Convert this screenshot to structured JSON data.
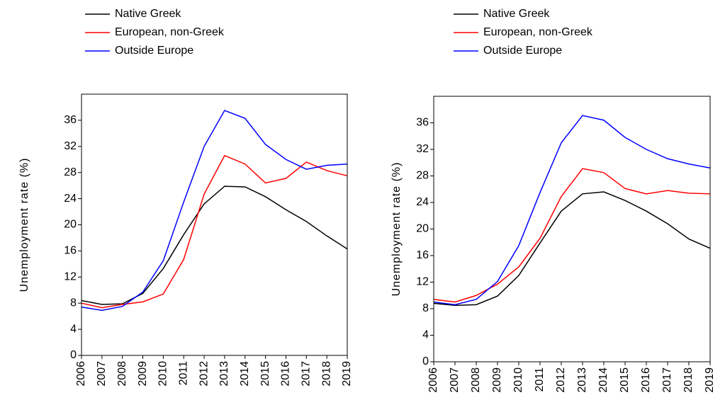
{
  "chart_data": [
    {
      "type": "line",
      "y_label": "Unemployment rate (%)",
      "categories": [
        "2006",
        "2007",
        "2008",
        "2009",
        "2010",
        "2011",
        "2012",
        "2013",
        "2014",
        "2015",
        "2016",
        "2017",
        "2018",
        "2019"
      ],
      "series": [
        {
          "name": "Native Greek",
          "color": "#000000",
          "values": [
            8.4,
            7.8,
            7.9,
            9.5,
            13.3,
            18.5,
            23.2,
            25.9,
            25.8,
            24.3,
            22.3,
            20.5,
            18.3,
            16.3
          ]
        },
        {
          "name": "European, non-Greek",
          "color": "#ff0000",
          "values": [
            8.0,
            7.3,
            7.8,
            8.2,
            9.4,
            14.7,
            24.7,
            30.6,
            29.3,
            26.4,
            27.1,
            29.6,
            28.3,
            27.5
          ]
        },
        {
          "name": "Outside Europe",
          "color": "#0000ff",
          "values": [
            7.4,
            6.9,
            7.5,
            9.7,
            14.5,
            23.5,
            32.0,
            37.5,
            36.3,
            32.3,
            30.0,
            28.5,
            29.1,
            29.3
          ]
        }
      ],
      "ylim": [
        0,
        40
      ],
      "yticks": [
        0,
        4,
        8,
        12,
        16,
        20,
        24,
        28,
        32,
        36
      ]
    },
    {
      "type": "line",
      "y_label": "Unemployment rate (%)",
      "categories": [
        "2006",
        "2007",
        "2008",
        "2009",
        "2010",
        "2011",
        "2012",
        "2013",
        "2014",
        "2015",
        "2016",
        "2017",
        "2018",
        "2019"
      ],
      "series": [
        {
          "name": "Native Greek",
          "color": "#000000",
          "values": [
            8.8,
            8.5,
            8.6,
            9.9,
            13.0,
            17.9,
            22.7,
            25.3,
            25.6,
            24.3,
            22.7,
            20.8,
            18.5,
            17.1
          ]
        },
        {
          "name": "European, non-Greek",
          "color": "#ff0000",
          "values": [
            9.4,
            9.0,
            10.0,
            11.7,
            14.3,
            18.6,
            24.9,
            29.1,
            28.5,
            26.1,
            25.3,
            25.8,
            25.4,
            25.3
          ]
        },
        {
          "name": "Outside Europe",
          "color": "#0000ff",
          "values": [
            9.0,
            8.6,
            9.4,
            12.1,
            17.5,
            25.5,
            33.0,
            37.1,
            36.4,
            33.8,
            32.0,
            30.6,
            29.8,
            29.2
          ]
        }
      ],
      "ylim": [
        0,
        40
      ],
      "yticks": [
        0,
        4,
        8,
        12,
        16,
        20,
        24,
        28,
        32,
        36
      ]
    }
  ]
}
